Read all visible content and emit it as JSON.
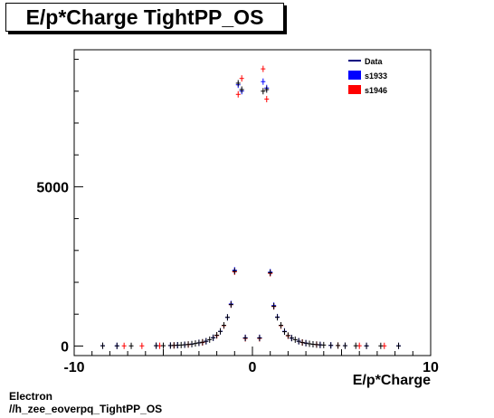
{
  "title": "E/p*Charge TightPP_OS",
  "footer": {
    "line1": "Electron",
    "line2": "//h_zee_eoverpq_TightPP_OS"
  },
  "colors": {
    "data": "#000080",
    "s1933": "#0000ff",
    "s1946": "#ff0000"
  },
  "chart_data": {
    "type": "scatter",
    "xlabel": "E/p*Charge",
    "ylabel": "",
    "xlim": [
      -10,
      10
    ],
    "ylim": [
      -300,
      9300
    ],
    "x_ticks": [
      -10,
      0,
      10
    ],
    "y_ticks": [
      0,
      5000
    ],
    "legend": [
      "Data",
      "s1933",
      "s1946"
    ],
    "legend_position": "top-right",
    "grid": false,
    "series": [
      {
        "name": "Data",
        "style": "crosses",
        "points": [
          [
            -8.4,
            8
          ],
          [
            -7.6,
            5
          ],
          [
            -6.8,
            5
          ],
          [
            -5.4,
            10
          ],
          [
            -5.0,
            10
          ],
          [
            -4.6,
            15
          ],
          [
            -4.4,
            20
          ],
          [
            -4.2,
            25
          ],
          [
            -4.0,
            30
          ],
          [
            -3.8,
            40
          ],
          [
            -3.6,
            50
          ],
          [
            -3.4,
            60
          ],
          [
            -3.2,
            80
          ],
          [
            -3.0,
            100
          ],
          [
            -2.8,
            120
          ],
          [
            -2.6,
            150
          ],
          [
            -2.4,
            200
          ],
          [
            -2.2,
            260
          ],
          [
            -2.0,
            340
          ],
          [
            -1.8,
            460
          ],
          [
            -1.6,
            650
          ],
          [
            -1.4,
            900
          ],
          [
            -1.2,
            1300
          ],
          [
            -1.0,
            2350
          ],
          [
            -0.8,
            8250
          ],
          [
            -0.6,
            8050
          ],
          [
            -0.4,
            250
          ],
          [
            0.4,
            250
          ],
          [
            0.6,
            8000
          ],
          [
            0.8,
            8050
          ],
          [
            1.0,
            2300
          ],
          [
            1.2,
            1250
          ],
          [
            1.4,
            900
          ],
          [
            1.6,
            650
          ],
          [
            1.8,
            450
          ],
          [
            2.0,
            330
          ],
          [
            2.2,
            250
          ],
          [
            2.4,
            200
          ],
          [
            2.6,
            150
          ],
          [
            2.8,
            110
          ],
          [
            3.0,
            90
          ],
          [
            3.2,
            70
          ],
          [
            3.4,
            55
          ],
          [
            3.6,
            45
          ],
          [
            3.8,
            35
          ],
          [
            4.0,
            30
          ],
          [
            4.4,
            20
          ],
          [
            4.8,
            15
          ],
          [
            5.2,
            10
          ],
          [
            5.8,
            8
          ],
          [
            6.4,
            5
          ],
          [
            7.2,
            5
          ],
          [
            8.2,
            5
          ]
        ]
      },
      {
        "name": "s1933",
        "style": "crosses",
        "points": [
          [
            -8.4,
            8
          ],
          [
            -7.6,
            5
          ],
          [
            -5.4,
            10
          ],
          [
            -4.6,
            15
          ],
          [
            -4.2,
            25
          ],
          [
            -3.8,
            40
          ],
          [
            -3.4,
            60
          ],
          [
            -3.0,
            100
          ],
          [
            -2.6,
            150
          ],
          [
            -2.2,
            260
          ],
          [
            -1.8,
            460
          ],
          [
            -1.4,
            900
          ],
          [
            -1.2,
            1320
          ],
          [
            -1.0,
            2380
          ],
          [
            -0.8,
            8200
          ],
          [
            -0.6,
            8000
          ],
          [
            -0.4,
            260
          ],
          [
            0.4,
            260
          ],
          [
            0.6,
            8300
          ],
          [
            0.8,
            8100
          ],
          [
            1.0,
            2320
          ],
          [
            1.2,
            1270
          ],
          [
            1.4,
            910
          ],
          [
            1.8,
            460
          ],
          [
            2.2,
            250
          ],
          [
            2.6,
            150
          ],
          [
            3.0,
            90
          ],
          [
            3.4,
            55
          ],
          [
            3.8,
            35
          ],
          [
            4.4,
            20
          ],
          [
            5.2,
            10
          ],
          [
            6.4,
            5
          ],
          [
            8.2,
            5
          ]
        ]
      },
      {
        "name": "s1946",
        "style": "crosses",
        "points": [
          [
            -7.2,
            5
          ],
          [
            -6.2,
            5
          ],
          [
            -5.2,
            8
          ],
          [
            -4.4,
            18
          ],
          [
            -3.6,
            45
          ],
          [
            -2.8,
            110
          ],
          [
            -2.0,
            330
          ],
          [
            -1.6,
            640
          ],
          [
            -1.2,
            1300
          ],
          [
            -1.0,
            2330
          ],
          [
            -0.8,
            7900
          ],
          [
            -0.6,
            8400
          ],
          [
            -0.4,
            240
          ],
          [
            0.4,
            240
          ],
          [
            0.6,
            8700
          ],
          [
            0.8,
            7750
          ],
          [
            1.0,
            2280
          ],
          [
            1.2,
            1240
          ],
          [
            1.6,
            640
          ],
          [
            2.0,
            320
          ],
          [
            2.8,
            110
          ],
          [
            3.6,
            45
          ],
          [
            4.8,
            15
          ],
          [
            6.0,
            8
          ],
          [
            7.4,
            5
          ]
        ]
      }
    ]
  }
}
